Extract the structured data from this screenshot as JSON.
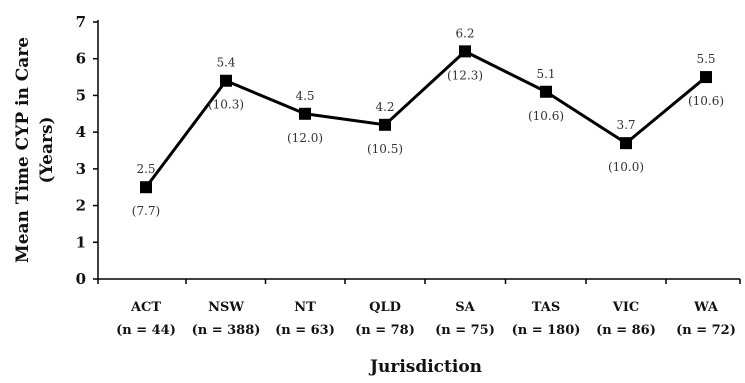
{
  "chart_data": {
    "type": "line",
    "title": "",
    "xlabel": "Jurisdiction",
    "ylabel_line1": "Mean Time CYP in Care",
    "ylabel_line2": "(Years)",
    "ylim": [
      0,
      7
    ],
    "yticks": [
      "0",
      "1",
      "2",
      "3",
      "4",
      "5",
      "6",
      "7"
    ],
    "grid": false,
    "categories": [
      "ACT",
      "NSW",
      "NT",
      "QLD",
      "SA",
      "TAS",
      "VIC",
      "WA"
    ],
    "category_n": [
      "(n = 44)",
      "(n = 388)",
      "(n = 63)",
      "(n = 78)",
      "(n = 75)",
      "(n = 180)",
      "(n = 86)",
      "(n =  72)"
    ],
    "values": [
      2.5,
      5.4,
      4.5,
      4.2,
      6.2,
      5.1,
      3.7,
      5.5
    ],
    "value_labels": [
      "2.5",
      "5.4",
      "4.5",
      "4.2",
      "6.2",
      "5.1",
      "3.7",
      "5.5"
    ],
    "sd_labels": [
      "(7.7)",
      "(10.3)",
      "(12.0)",
      "(10.5)",
      "(12.3)",
      "(10.6)",
      "(10.0)",
      "(10.6)"
    ],
    "line_color": "#000000",
    "marker": "square"
  }
}
